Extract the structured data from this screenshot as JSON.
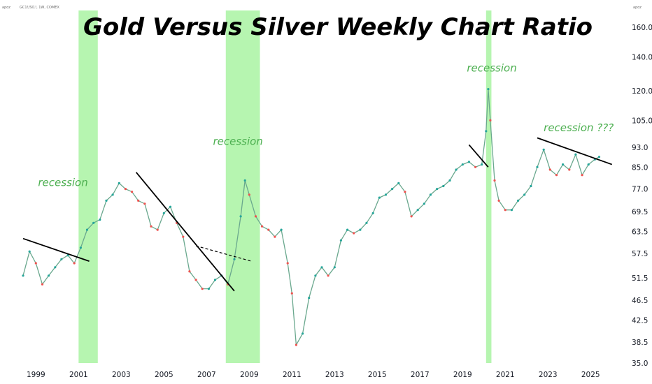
{
  "header": {
    "symbol_label": "GC1!/SI1!, 1W, COMEX",
    "left_corner": "apoz",
    "right_corner": "apoz"
  },
  "chart_data": {
    "type": "line",
    "title": "Gold Versus Silver Weekly Chart Ratio",
    "x_range": [
      1998.3,
      2026.5
    ],
    "ylim": [
      35.0,
      170.0
    ],
    "y_scale": "log",
    "y_ticks": [
      "160.0",
      "140.0",
      "120.0",
      "105.0",
      "93.0",
      "85.0",
      "77.0",
      "69.5",
      "63.5",
      "57.5",
      "51.5",
      "46.5",
      "42.5",
      "38.5",
      "35.0"
    ],
    "x_ticks": [
      "1999",
      "2001",
      "2003",
      "2005",
      "2007",
      "2009",
      "2011",
      "2013",
      "2015",
      "2017",
      "2019",
      "2021",
      "2023",
      "2025"
    ],
    "recessions": [
      {
        "start": 2001.0,
        "end": 2001.9,
        "label": "recession",
        "label_at": [
          1999.1,
          78.0
        ]
      },
      {
        "start": 2007.9,
        "end": 2009.5,
        "label": "recession",
        "label_at": [
          2007.3,
          94.0
        ]
      },
      {
        "start": 2020.1,
        "end": 2020.35,
        "label": "recession",
        "label_at": [
          2019.2,
          131.0
        ]
      },
      {
        "start": null,
        "end": null,
        "label": "recession ???",
        "label_at": [
          2022.8,
          100.0
        ]
      }
    ],
    "series": [
      {
        "x": [
          1998.4,
          1998.7,
          1999.0,
          1999.3,
          1999.6,
          1999.9,
          2000.2,
          2000.5,
          2000.8,
          2001.1,
          2001.4,
          2001.7,
          2002.0,
          2002.3,
          2002.6,
          2002.9,
          2003.2,
          2003.5,
          2003.8,
          2004.1,
          2004.4,
          2004.7,
          2005.0,
          2005.3,
          2005.6,
          2005.9,
          2006.2,
          2006.5,
          2006.8,
          2007.1,
          2007.4,
          2007.7,
          2008.0,
          2008.3,
          2008.6,
          2008.8,
          2009.0,
          2009.3,
          2009.6,
          2009.9,
          2010.2,
          2010.5,
          2010.8,
          2011.0,
          2011.2,
          2011.5,
          2011.8,
          2012.1,
          2012.4,
          2012.7,
          2013.0,
          2013.3,
          2013.6,
          2013.9,
          2014.2,
          2014.5,
          2014.8,
          2015.1,
          2015.4,
          2015.7,
          2016.0,
          2016.3,
          2016.6,
          2016.9,
          2017.2,
          2017.5,
          2017.8,
          2018.1,
          2018.4,
          2018.7,
          2019.0,
          2019.3,
          2019.6,
          2019.9,
          2020.1,
          2020.2,
          2020.3,
          2020.5,
          2020.7,
          2021.0,
          2021.3,
          2021.6,
          2021.9,
          2022.2,
          2022.5,
          2022.8,
          2023.1,
          2023.4,
          2023.7,
          2024.0,
          2024.3,
          2024.6,
          2024.9,
          2025.2,
          2025.4
        ],
        "values": [
          52,
          58,
          55,
          50,
          52,
          54,
          56,
          57,
          55,
          59,
          64,
          66,
          67,
          73,
          75,
          79,
          77,
          76,
          73,
          72,
          65,
          64,
          69,
          71,
          66,
          62,
          53,
          51,
          49,
          49,
          51,
          52,
          50,
          56,
          68,
          80,
          75,
          68,
          65,
          64,
          62,
          64,
          55,
          48,
          38,
          40,
          47,
          52,
          54,
          52,
          54,
          61,
          64,
          63,
          64,
          66,
          69,
          74,
          75,
          77,
          79,
          76,
          68,
          70,
          72,
          75,
          77,
          78,
          80,
          84,
          86,
          87,
          85,
          86,
          100,
          121,
          105,
          80,
          73,
          70,
          70,
          73,
          75,
          78,
          85,
          92,
          84,
          82,
          86,
          84,
          90,
          82,
          86,
          88,
          89
        ]
      }
    ],
    "trendlines": [
      {
        "x": [
          1998.4,
          2001.5
        ],
        "y": [
          61.5,
          55.5
        ]
      },
      {
        "x": [
          2003.7,
          2008.3
        ],
        "y": [
          83.0,
          48.5
        ]
      },
      {
        "x": [
          2006.5,
          2009.1
        ],
        "y": [
          59.5,
          55.5
        ],
        "dashed": true
      },
      {
        "x": [
          2019.3,
          2020.2
        ],
        "y": [
          94.0,
          85.0
        ]
      },
      {
        "x": [
          2022.5,
          2026.0
        ],
        "y": [
          97.0,
          86.0
        ]
      }
    ]
  }
}
